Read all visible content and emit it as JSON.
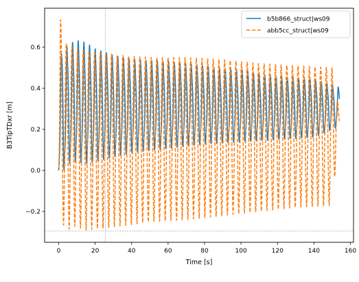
{
  "chart_data": {
    "type": "line",
    "xlabel": "Time [s]",
    "ylabel": "B3TipTDxr [m]",
    "xlim": [
      -7.7,
      161.7
    ],
    "ylim": [
      -0.35,
      0.79
    ],
    "xticks": [
      0,
      20,
      40,
      60,
      80,
      100,
      120,
      140,
      160
    ],
    "xtick_labels": [
      "0",
      "20",
      "40",
      "60",
      "80",
      "100",
      "120",
      "140",
      "160"
    ],
    "yticks": [
      -0.2,
      0.0,
      0.2,
      0.4,
      0.6
    ],
    "ytick_labels": [
      "−0.2",
      "0.0",
      "0.2",
      "0.4",
      "0.6"
    ],
    "reference_lines": {
      "vertical_x": 25.6,
      "horizontal_y": -0.295
    },
    "grid": false,
    "legend_position": "top-right",
    "oscillation_period_s": 3.1,
    "series": [
      {
        "name": "b5b866_struct|ws09",
        "color": "#1f77b4",
        "style": "solid",
        "envelope": {
          "t": [
            0,
            1,
            2,
            3,
            5,
            10,
            15,
            20,
            30,
            40,
            60,
            80,
            100,
            120,
            140,
            154
          ],
          "upper": [
            0.03,
            0.45,
            0.66,
            0.55,
            0.6,
            0.62,
            0.61,
            0.58,
            0.55,
            0.53,
            0.52,
            0.5,
            0.48,
            0.45,
            0.44,
            0.4
          ],
          "lower": [
            0.0,
            0.1,
            0.0,
            0.02,
            0.05,
            0.06,
            0.05,
            0.06,
            0.08,
            0.1,
            0.12,
            0.14,
            0.15,
            0.16,
            0.17,
            0.22
          ]
        }
      },
      {
        "name": "abb5cc_struct|ws09",
        "color": "#ff7f0e",
        "style": "dashed",
        "envelope": {
          "t": [
            0,
            1,
            2,
            4,
            8,
            15,
            25,
            35,
            50,
            70,
            90,
            110,
            130,
            150,
            154
          ],
          "upper": [
            0.05,
            0.74,
            0.66,
            0.62,
            0.6,
            0.58,
            0.57,
            0.56,
            0.55,
            0.55,
            0.54,
            0.52,
            0.51,
            0.5,
            0.28
          ],
          "lower": [
            0.0,
            -0.3,
            -0.25,
            -0.3,
            -0.27,
            -0.29,
            -0.28,
            -0.27,
            -0.25,
            -0.24,
            -0.22,
            -0.2,
            -0.18,
            -0.17,
            0.22
          ]
        }
      }
    ]
  }
}
